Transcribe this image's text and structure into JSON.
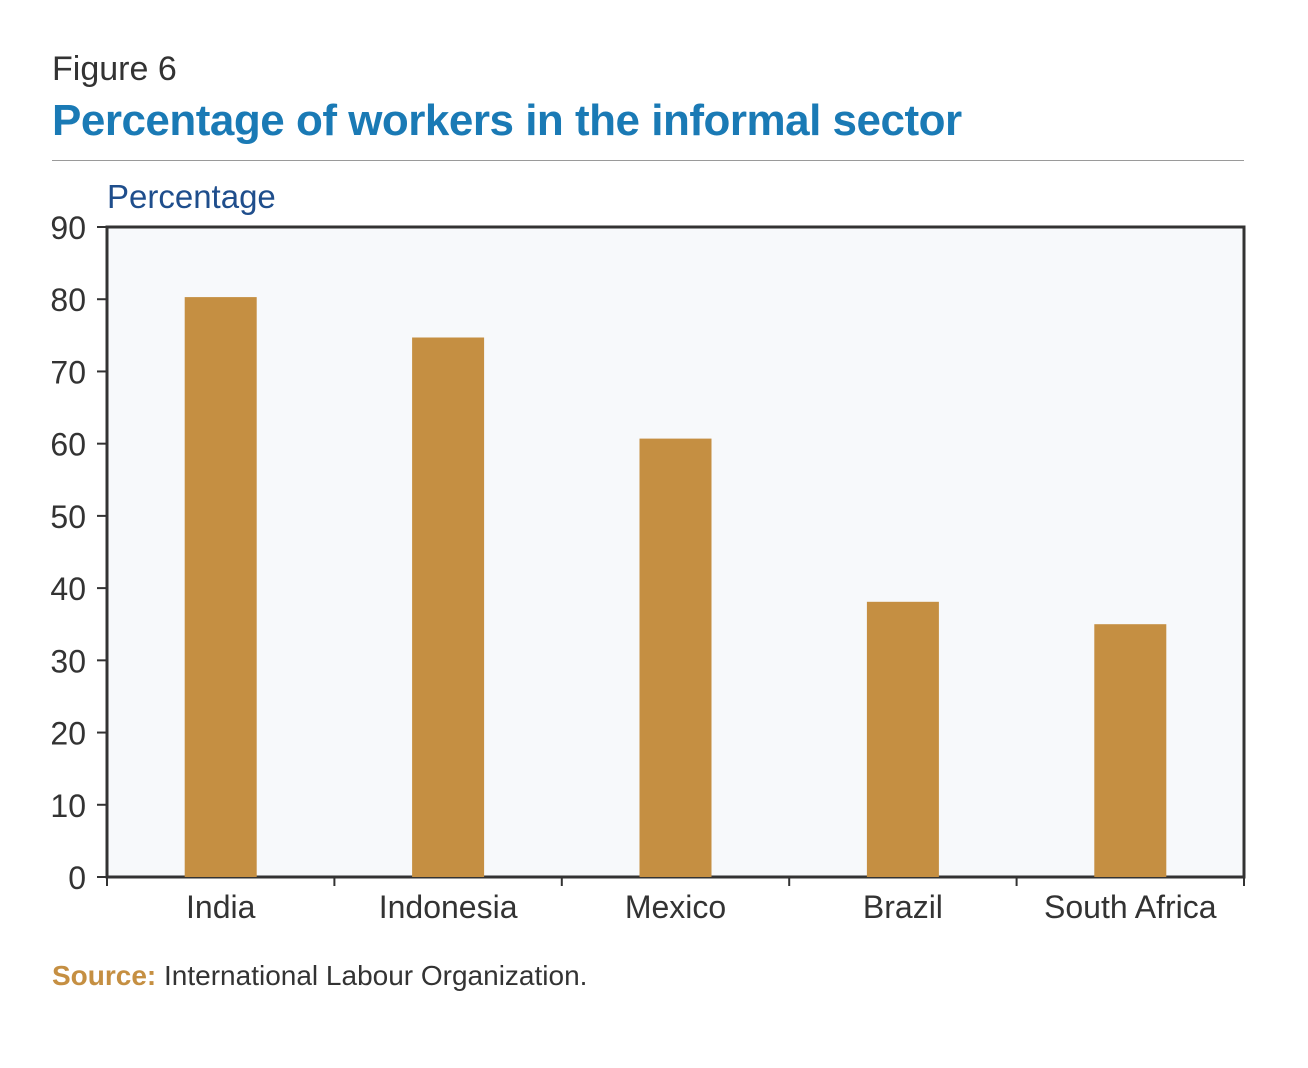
{
  "header": {
    "figure_label": "Figure 6",
    "title": "Percentage of workers in the informal sector"
  },
  "footer": {
    "source_label": "Source:",
    "source_text": " International Labour Organization."
  },
  "colors": {
    "bar": "#c58f42",
    "title": "#1a7ab5",
    "ylabel": "#1f4e8c",
    "plot_bg": "#f7f9fb"
  },
  "chart_data": {
    "type": "bar",
    "ylabel": "Percentage",
    "xlabel": "",
    "categories": [
      "India",
      "Indonesia",
      "Mexico",
      "Brazil",
      "South Africa"
    ],
    "values": [
      80.3,
      74.7,
      60.7,
      38.1,
      35.0
    ],
    "ylim": [
      0,
      90
    ],
    "yticks": [
      0,
      10,
      20,
      30,
      40,
      50,
      60,
      70,
      80,
      90
    ],
    "grid": false,
    "legend": "none"
  }
}
